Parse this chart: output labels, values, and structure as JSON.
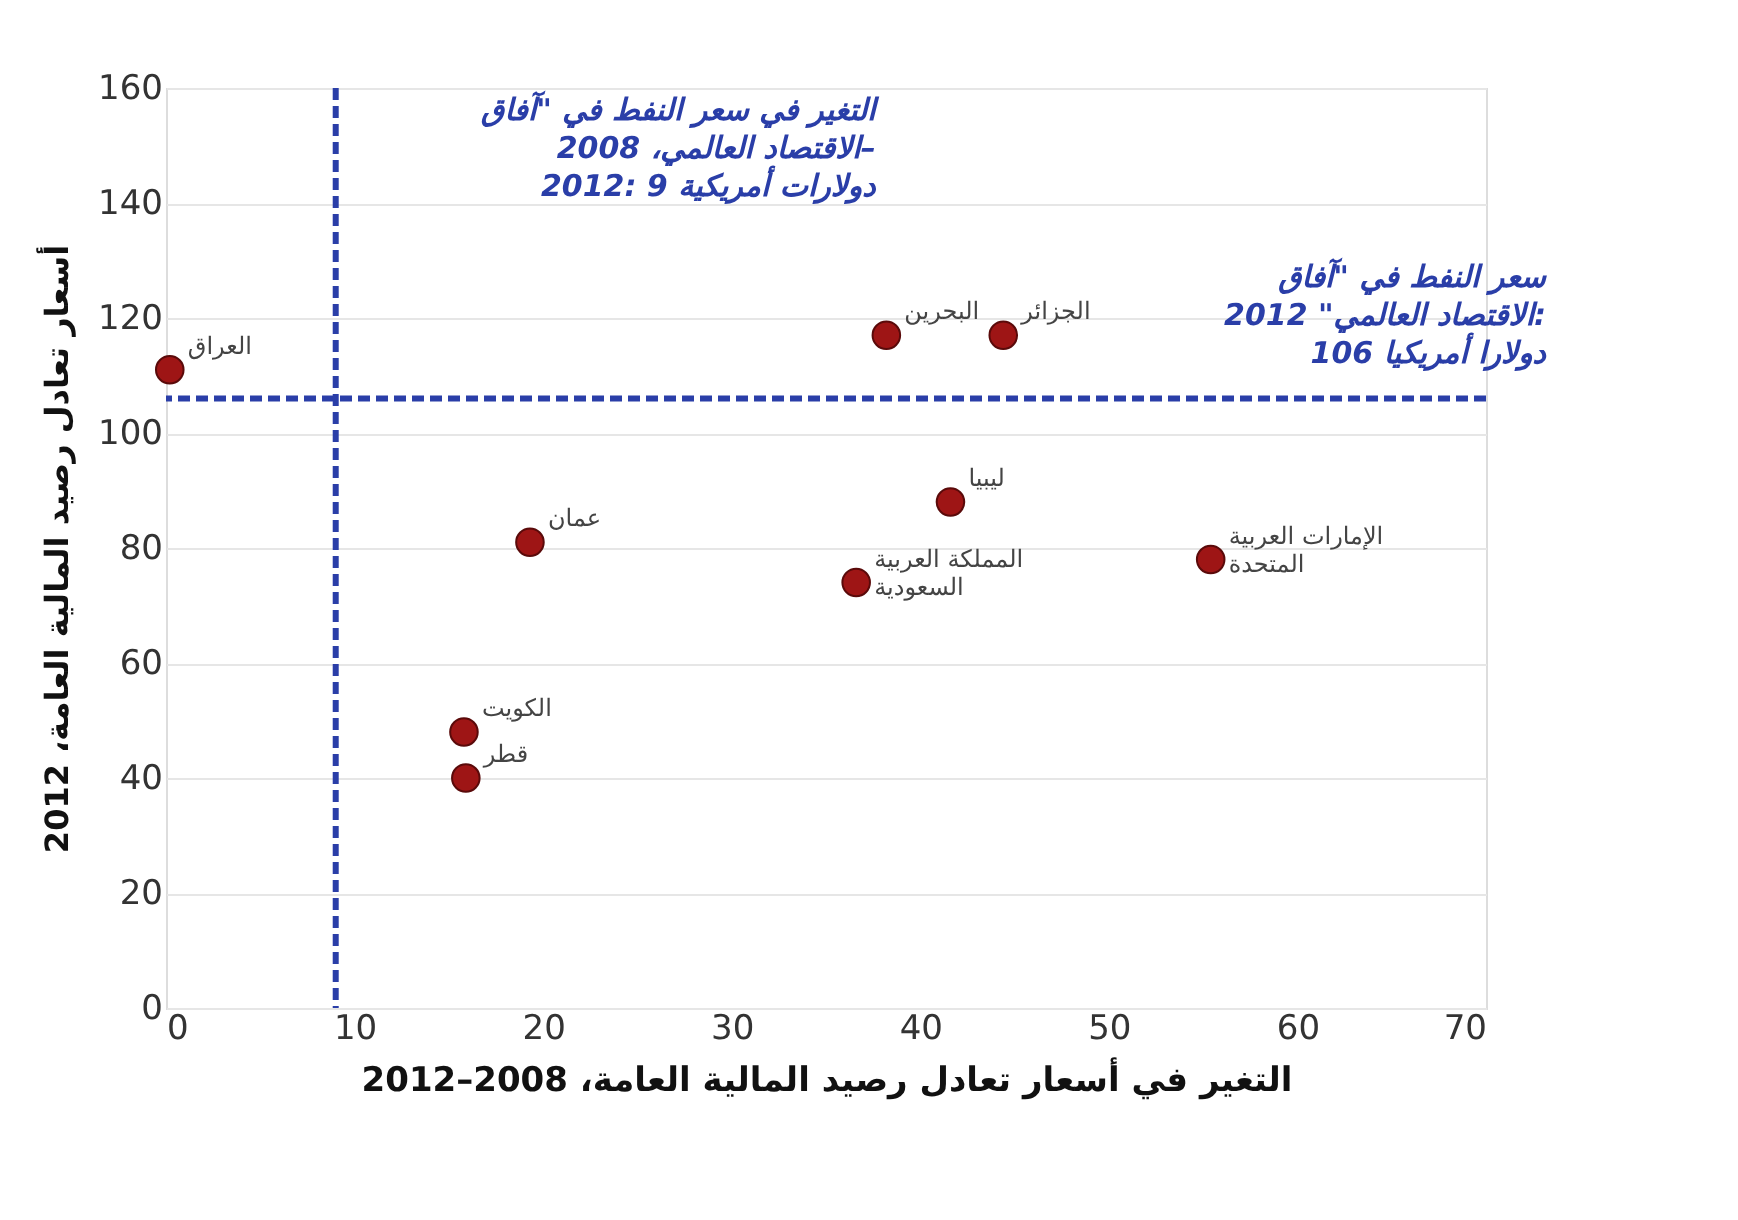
{
  "chart_data": {
    "type": "scatter",
    "xlabel": "التغير في أسعار تعادل رصيد المالية العامة، 2008–2012",
    "ylabel": "أسعار تعادل رصيد المالية العامة، 2012",
    "x": [
      0.2,
      19.3,
      15.8,
      15.9,
      38.2,
      44.4,
      41.6,
      36.6,
      55.4
    ],
    "series": [
      {
        "color": "#9e1515",
        "values": [
          111,
          81,
          48,
          40,
          117,
          117,
          88,
          74,
          78
        ]
      }
    ],
    "annotations": [
      {
        "text": "العراق",
        "x": 0.2,
        "y": 111
      },
      {
        "text": "عمان",
        "x": 19.3,
        "y": 81
      },
      {
        "text": "الكويت",
        "x": 15.8,
        "y": 48
      },
      {
        "text": "قطر",
        "x": 15.9,
        "y": 40
      },
      {
        "text": "البحرين",
        "x": 38.2,
        "y": 117
      },
      {
        "text": "الجزائر",
        "x": 44.4,
        "y": 117
      },
      {
        "text": "ليبيا",
        "x": 41.6,
        "y": 88
      },
      {
        "text": "المملكة العربية\nالسعودية",
        "x": 36.6,
        "y": 74
      },
      {
        "text": "الإمارات العربية\nالمتحدة",
        "x": 55.4,
        "y": 78
      }
    ],
    "ref_lines": [
      {
        "axis": "x",
        "value": 9,
        "label": "التغير في سعر النفط في \"آفاق\nالاقتصاد العالمي، 2008–\n2012: 9 دولارات أمريكية",
        "color": "#2a3ea8",
        "line_style": "dashed"
      },
      {
        "axis": "y",
        "value": 106,
        "label": "سعر النفط في \"آفاق\nالاقتصاد العالمي\" 2012:\n106 دولارا أمريكيا",
        "color": "#2a3ea8",
        "line_style": "dashed"
      }
    ],
    "xlim": [
      0,
      70
    ],
    "xticks": [
      0,
      10,
      20,
      30,
      40,
      50,
      60,
      70
    ],
    "ylim": [
      0,
      160
    ],
    "yticks": [
      0,
      20,
      40,
      60,
      80,
      100,
      120,
      140,
      160
    ],
    "grid": "y",
    "marker": "circle"
  }
}
